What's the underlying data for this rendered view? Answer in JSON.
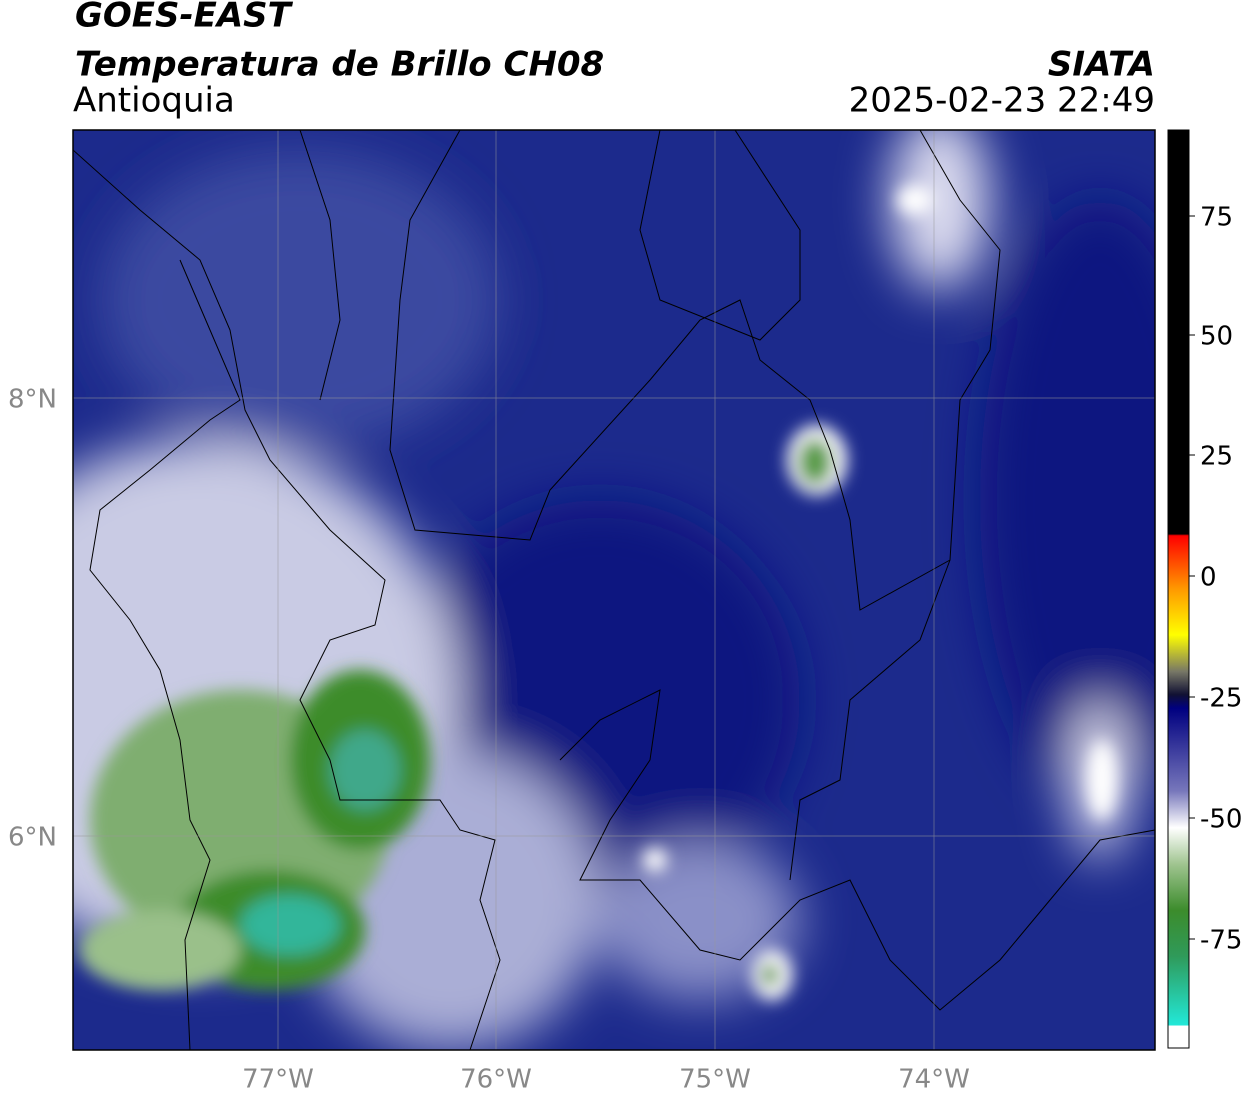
{
  "header": {
    "title": "GOES-EAST",
    "subtitle": "Temperatura de Brillo CH08",
    "region": "Antioquia",
    "agency": "SIATA",
    "datetime": "2025-02-23 22:49"
  },
  "map": {
    "lat_labels": [
      "8°N",
      "6°N"
    ],
    "lon_labels": [
      "77°W",
      "76°W",
      "75°W",
      "74°W"
    ]
  },
  "colorbar": {
    "labels": [
      "75",
      "50",
      "25",
      "0",
      "-25",
      "-50",
      "-75"
    ]
  }
}
